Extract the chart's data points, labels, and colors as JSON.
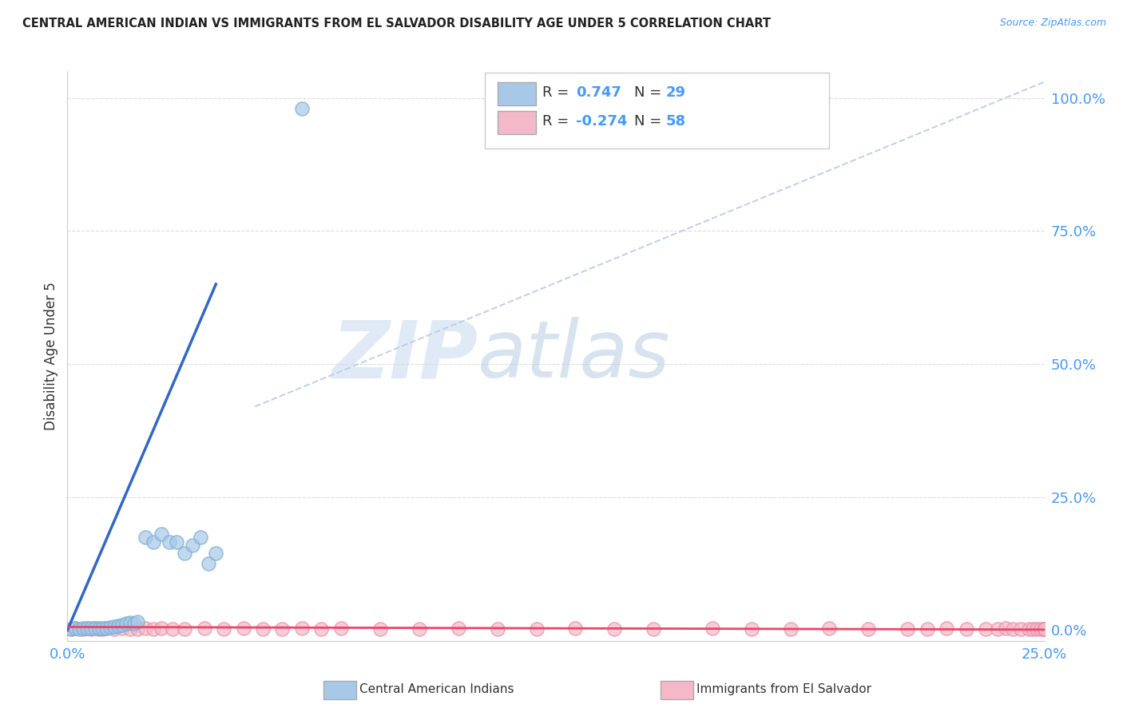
{
  "title": "CENTRAL AMERICAN INDIAN VS IMMIGRANTS FROM EL SALVADOR DISABILITY AGE UNDER 5 CORRELATION CHART",
  "source": "Source: ZipAtlas.com",
  "ylabel": "Disability Age Under 5",
  "xlim": [
    0.0,
    0.25
  ],
  "ylim": [
    -0.02,
    1.05
  ],
  "blue_R": 0.747,
  "blue_N": 29,
  "pink_R": -0.274,
  "pink_N": 58,
  "blue_scatter_x": [
    0.001,
    0.002,
    0.003,
    0.004,
    0.005,
    0.006,
    0.007,
    0.008,
    0.009,
    0.01,
    0.011,
    0.012,
    0.013,
    0.014,
    0.015,
    0.016,
    0.017,
    0.018,
    0.02,
    0.022,
    0.024,
    0.026,
    0.028,
    0.03,
    0.032,
    0.034,
    0.036,
    0.038,
    0.06
  ],
  "blue_scatter_y": [
    0.002,
    0.003,
    0.002,
    0.003,
    0.003,
    0.003,
    0.004,
    0.004,
    0.003,
    0.003,
    0.005,
    0.006,
    0.008,
    0.01,
    0.012,
    0.014,
    0.013,
    0.016,
    0.175,
    0.165,
    0.18,
    0.165,
    0.165,
    0.145,
    0.16,
    0.175,
    0.125,
    0.145,
    0.98
  ],
  "pink_scatter_x": [
    0.001,
    0.002,
    0.004,
    0.005,
    0.006,
    0.007,
    0.008,
    0.009,
    0.01,
    0.012,
    0.014,
    0.016,
    0.018,
    0.02,
    0.022,
    0.024,
    0.027,
    0.03,
    0.035,
    0.04,
    0.045,
    0.05,
    0.055,
    0.06,
    0.065,
    0.07,
    0.08,
    0.09,
    0.1,
    0.11,
    0.12,
    0.13,
    0.14,
    0.15,
    0.165,
    0.175,
    0.185,
    0.195,
    0.205,
    0.215,
    0.22,
    0.225,
    0.23,
    0.235,
    0.238,
    0.24,
    0.242,
    0.244,
    0.246,
    0.247,
    0.248,
    0.249,
    0.25,
    0.25,
    0.25,
    0.25,
    0.25,
    0.25
  ],
  "pink_scatter_y": [
    0.002,
    0.003,
    0.002,
    0.003,
    0.002,
    0.003,
    0.002,
    0.002,
    0.003,
    0.002,
    0.003,
    0.002,
    0.002,
    0.003,
    0.002,
    0.003,
    0.002,
    0.002,
    0.003,
    0.002,
    0.003,
    0.002,
    0.002,
    0.003,
    0.002,
    0.003,
    0.002,
    0.002,
    0.003,
    0.002,
    0.002,
    0.003,
    0.002,
    0.002,
    0.003,
    0.002,
    0.002,
    0.003,
    0.002,
    0.002,
    0.002,
    0.003,
    0.002,
    0.002,
    0.002,
    0.003,
    0.002,
    0.002,
    0.002,
    0.002,
    0.002,
    0.002,
    0.002,
    0.002,
    0.002,
    0.002,
    0.002,
    0.002
  ],
  "blue_color": "#a8c8e8",
  "blue_edge_color": "#7bafd4",
  "blue_line_color": "#3366cc",
  "pink_color": "#f4b8c8",
  "pink_edge_color": "#e890a8",
  "pink_line_color": "#ee4466",
  "diagonal_color": "#bbccee",
  "watermark_zip": "ZIP",
  "watermark_atlas": "atlas",
  "background_color": "#ffffff",
  "grid_color": "#dddddd",
  "ytick_values": [
    0.0,
    0.25,
    0.5,
    0.75,
    1.0
  ],
  "ytick_labels": [
    "0.0%",
    "25.0%",
    "50.0%",
    "75.0%",
    "100.0%"
  ],
  "xtick_values": [
    0.0,
    0.25
  ],
  "xtick_labels": [
    "0.0%",
    "25.0%"
  ]
}
